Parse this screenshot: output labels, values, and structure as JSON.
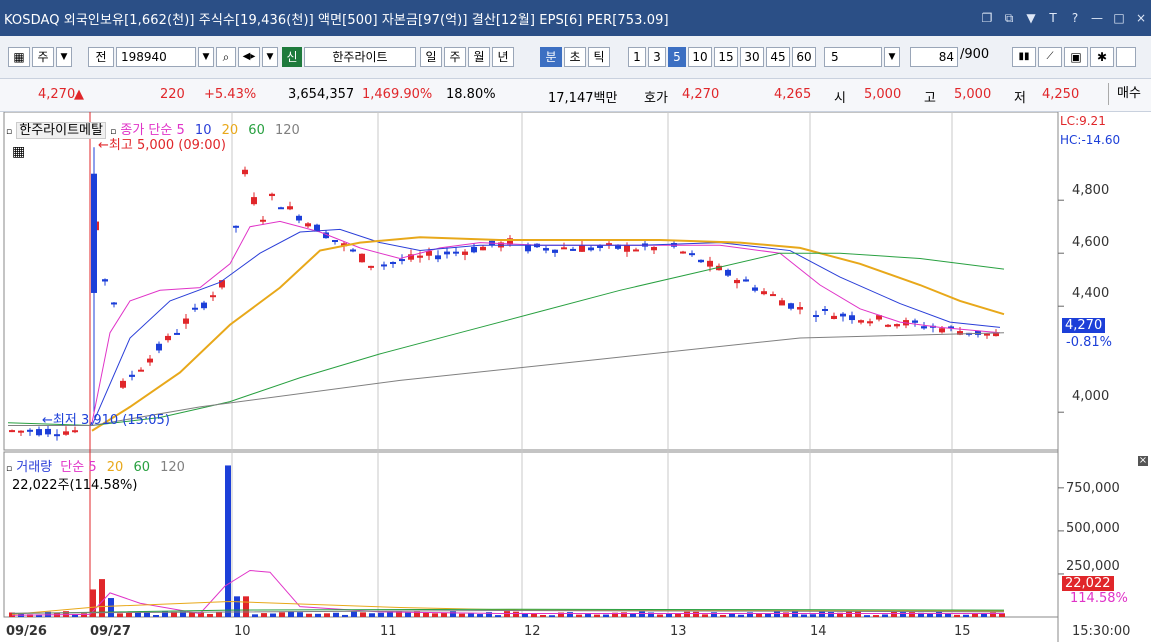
{
  "title": "KOSDAQ 외국인보유[1,662(천)] 주식수[19,436(천)] 액면[500] 자본금[97(억)] 결산[12월] EPS[6] PER[753.09]",
  "window_icons": [
    "□",
    "▭",
    "▬",
    "T",
    "?",
    "|",
    "—",
    "□",
    "×"
  ],
  "toolbar": {
    "ju": "주",
    "jeon": "전",
    "code": "198940",
    "sin": "신",
    "stock_name": "한주라이트",
    "periods": [
      "일",
      "주",
      "월",
      "년",
      "분",
      "초",
      "틱"
    ],
    "intervals": [
      "1",
      "3",
      "5",
      "10",
      "15",
      "30",
      "45",
      "60"
    ],
    "active_interval": "5",
    "selected_period": "분",
    "count_select": "5",
    "page_count": "84",
    "page_total": "/900"
  },
  "quote": {
    "price": "4,270",
    "arrow": "▲",
    "change": "220",
    "change_pct": "+5.43%",
    "volume": "3,654,357",
    "vol_ratio": "1,469.90%",
    "turnover": "18.80%",
    "amount": "17,147백만",
    "hoga_label": "호가",
    "ask": "4,270",
    "bid": "4,265",
    "open_label": "시",
    "open": "5,000",
    "high_label": "고",
    "high": "5,000",
    "low_label": "저",
    "low": "4,250",
    "buy_label": "매수"
  },
  "price_panel": {
    "stock_label": "한주라이트메탈",
    "ma_title": "종가 단순",
    "ma_periods": [
      "5",
      "10",
      "20",
      "60",
      "120"
    ],
    "lc": "LC:9.21",
    "hc": "HC:-14.60",
    "high_annotation": "←최고 5,000 (09:00)",
    "low_annotation": "←최저 3,910 (15:05)",
    "current_price": "4,270",
    "current_pct": "-0.81%",
    "y_ticks": [
      "4,800",
      "4,600",
      "4,400",
      "4,000"
    ]
  },
  "volume_panel": {
    "label": "거래량",
    "ma_title": "단순",
    "ma_periods": [
      "5",
      "20",
      "60",
      "120"
    ],
    "current_volume": "22,022주(114.58%)",
    "y_ticks": [
      "750,000",
      "500,000",
      "250,000"
    ],
    "current_value": "22,022",
    "current_pct": "114.58%"
  },
  "x_axis": {
    "labels": [
      "09/26",
      "09/27",
      "10",
      "11",
      "12",
      "13",
      "14",
      "15"
    ],
    "time": "15:30:00"
  },
  "chart_data": {
    "type": "candlestick",
    "price_range": [
      3880,
      5080
    ],
    "volume_range": [
      0,
      900000
    ],
    "colors": {
      "up": "#e0262a",
      "down": "#1c3fd8",
      "ma5": "#e033c8",
      "ma10": "#2a3ed8",
      "ma20": "#e8a81a",
      "ma60": "#28a040",
      "ma120": "#808080"
    }
  }
}
